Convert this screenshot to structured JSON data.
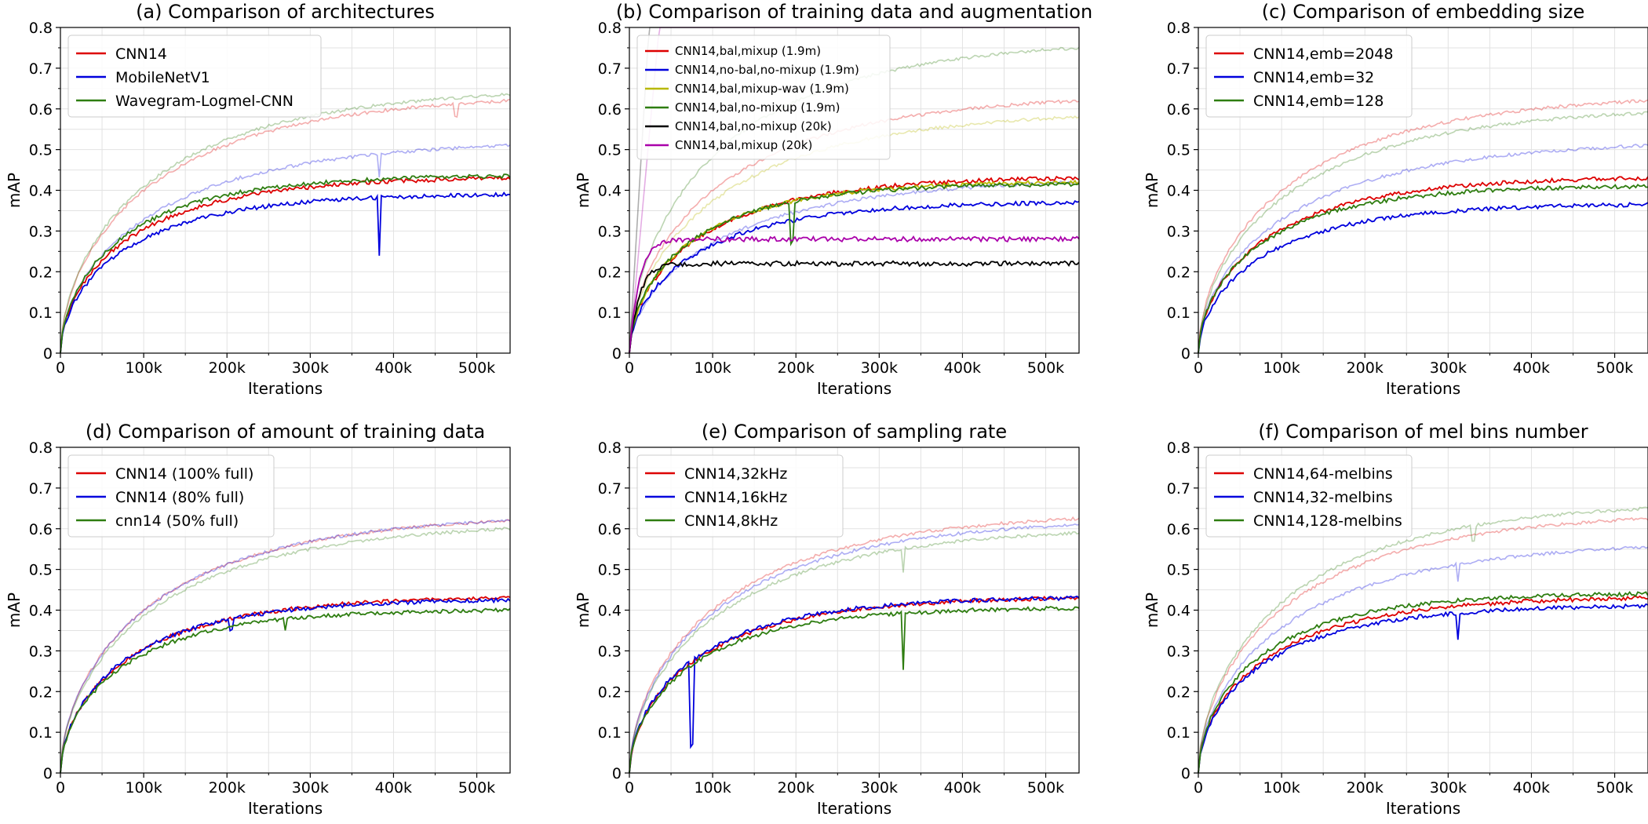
{
  "chart_data": [
    {
      "type": "line",
      "title": "(a) Comparison of architectures",
      "xlabel": "Iterations",
      "ylabel": "mAP",
      "xlim": [
        0,
        540000
      ],
      "ylim": [
        0,
        0.8
      ],
      "xticks": [
        "0",
        "100k",
        "200k",
        "300k",
        "400k",
        "500k"
      ],
      "yticks": [
        "0",
        "0.1",
        "0.2",
        "0.3",
        "0.4",
        "0.5",
        "0.6",
        "0.7",
        "0.8"
      ],
      "legend_position": "top-left",
      "series": [
        {
          "name": "CNN14",
          "color": "#dd0000",
          "test_final": 0.43,
          "train_final": 0.62,
          "spikes": [
            {
              "x": 475000,
              "depth": 0.03,
              "on": "train"
            }
          ]
        },
        {
          "name": "MobileNetV1",
          "color": "#0000dd",
          "test_final": 0.39,
          "train_final": 0.51,
          "spikes": [
            {
              "x": 382000,
              "depth": 0.14,
              "on": "test"
            },
            {
              "x": 382000,
              "depth": 0.06,
              "on": "train"
            }
          ]
        },
        {
          "name": "Wavegram-Logmel-CNN",
          "color": "#2e7d10",
          "test_final": 0.435,
          "train_final": 0.635,
          "spikes": []
        }
      ]
    },
    {
      "type": "line",
      "title": "(b) Comparison of training data and augmentation",
      "xlabel": "Iterations",
      "ylabel": "mAP",
      "xlim": [
        0,
        540000
      ],
      "ylim": [
        0,
        0.8
      ],
      "xticks": [
        "0",
        "100k",
        "200k",
        "300k",
        "400k",
        "500k"
      ],
      "yticks": [
        "0",
        "0.1",
        "0.2",
        "0.3",
        "0.4",
        "0.5",
        "0.6",
        "0.7",
        "0.8"
      ],
      "legend_position": "top-left",
      "series": [
        {
          "name": "CNN14,bal,mixup (1.9m)",
          "color": "#dd0000",
          "test_final": 0.43,
          "train_final": 0.62,
          "spikes": []
        },
        {
          "name": "CNN14,no-bal,no-mixup (1.9m)",
          "color": "#0000dd",
          "test_final": 0.37,
          "train_final": 0.42,
          "spikes": []
        },
        {
          "name": "CNN14,bal,mixup-wav (1.9m)",
          "color": "#b8b800",
          "test_final": 0.42,
          "train_final": 0.58,
          "spikes": []
        },
        {
          "name": "CNN14,bal,no-mixup (1.9m)",
          "color": "#2e7d10",
          "test_final": 0.415,
          "train_final": 0.75,
          "spikes": [
            {
              "x": 195000,
              "depth": 0.1,
              "on": "test"
            }
          ]
        },
        {
          "name": "CNN14,bal,no-mixup (20k)",
          "color": "#000000",
          "test_final": 0.22,
          "train_final": 0.8,
          "spikes": []
        },
        {
          "name": "CNN14,bal,mixup (20k)",
          "color": "#aa00aa",
          "test_final": 0.28,
          "train_final": 0.8,
          "spikes": []
        }
      ]
    },
    {
      "type": "line",
      "title": "(c) Comparison of embedding size",
      "xlabel": "Iterations",
      "ylabel": "mAP",
      "xlim": [
        0,
        540000
      ],
      "ylim": [
        0,
        0.8
      ],
      "xticks": [
        "0",
        "100k",
        "200k",
        "300k",
        "400k",
        "500k"
      ],
      "yticks": [
        "0",
        "0.1",
        "0.2",
        "0.3",
        "0.4",
        "0.5",
        "0.6",
        "0.7",
        "0.8"
      ],
      "legend_position": "top-left",
      "series": [
        {
          "name": "CNN14,emb=2048",
          "color": "#dd0000",
          "test_final": 0.43,
          "train_final": 0.62,
          "spikes": []
        },
        {
          "name": "CNN14,emb=32",
          "color": "#0000dd",
          "test_final": 0.365,
          "train_final": 0.51,
          "spikes": []
        },
        {
          "name": "CNN14,emb=128",
          "color": "#2e7d10",
          "test_final": 0.41,
          "train_final": 0.59,
          "spikes": []
        }
      ]
    },
    {
      "type": "line",
      "title": "(d) Comparison of amount of training data",
      "xlabel": "Iterations",
      "ylabel": "mAP",
      "xlim": [
        0,
        540000
      ],
      "ylim": [
        0,
        0.8
      ],
      "xticks": [
        "0",
        "100k",
        "200k",
        "300k",
        "400k",
        "500k"
      ],
      "yticks": [
        "0",
        "0.1",
        "0.2",
        "0.3",
        "0.4",
        "0.5",
        "0.6",
        "0.7",
        "0.8"
      ],
      "legend_position": "top-left",
      "series": [
        {
          "name": "CNN14 (100% full)",
          "color": "#dd0000",
          "test_final": 0.43,
          "train_final": 0.62,
          "spikes": []
        },
        {
          "name": "CNN14 (80% full)",
          "color": "#0000dd",
          "test_final": 0.425,
          "train_final": 0.62,
          "spikes": [
            {
              "x": 205000,
              "depth": 0.03,
              "on": "test"
            }
          ]
        },
        {
          "name": "cnn14 (50% full)",
          "color": "#2e7d10",
          "test_final": 0.4,
          "train_final": 0.6,
          "spikes": [
            {
              "x": 270000,
              "depth": 0.03,
              "on": "test"
            }
          ]
        }
      ]
    },
    {
      "type": "line",
      "title": "(e) Comparison of sampling rate",
      "xlabel": "Iterations",
      "ylabel": "mAP",
      "xlim": [
        0,
        540000
      ],
      "ylim": [
        0,
        0.8
      ],
      "xticks": [
        "0",
        "100k",
        "200k",
        "300k",
        "400k",
        "500k"
      ],
      "yticks": [
        "0",
        "0.1",
        "0.2",
        "0.3",
        "0.4",
        "0.5",
        "0.6",
        "0.7",
        "0.8"
      ],
      "legend_position": "top-left",
      "series": [
        {
          "name": "CNN14,32kHz",
          "color": "#dd0000",
          "test_final": 0.43,
          "train_final": 0.625,
          "spikes": []
        },
        {
          "name": "CNN14,16kHz",
          "color": "#0000dd",
          "test_final": 0.43,
          "train_final": 0.61,
          "spikes": [
            {
              "x": 75000,
              "depth": 0.21,
              "on": "test"
            }
          ]
        },
        {
          "name": "CNN14,8kHz",
          "color": "#2e7d10",
          "test_final": 0.405,
          "train_final": 0.59,
          "spikes": [
            {
              "x": 328000,
              "depth": 0.14,
              "on": "test"
            },
            {
              "x": 328000,
              "depth": 0.06,
              "on": "train"
            }
          ]
        }
      ]
    },
    {
      "type": "line",
      "title": "(f) Comparison of mel bins number",
      "xlabel": "Iterations",
      "ylabel": "mAP",
      "xlim": [
        0,
        540000
      ],
      "ylim": [
        0,
        0.8
      ],
      "xticks": [
        "0",
        "100k",
        "200k",
        "300k",
        "400k",
        "500k"
      ],
      "yticks": [
        "0",
        "0.1",
        "0.2",
        "0.3",
        "0.4",
        "0.5",
        "0.6",
        "0.7",
        "0.8"
      ],
      "legend_position": "top-left",
      "series": [
        {
          "name": "CNN14,64-melbins",
          "color": "#dd0000",
          "test_final": 0.43,
          "train_final": 0.625,
          "spikes": []
        },
        {
          "name": "CNN14,32-melbins",
          "color": "#0000dd",
          "test_final": 0.41,
          "train_final": 0.555,
          "spikes": [
            {
              "x": 312000,
              "depth": 0.07,
              "on": "test"
            },
            {
              "x": 312000,
              "depth": 0.04,
              "on": "train"
            }
          ]
        },
        {
          "name": "CNN14,128-melbins",
          "color": "#2e7d10",
          "test_final": 0.44,
          "train_final": 0.65,
          "spikes": [
            {
              "x": 330000,
              "depth": 0.04,
              "on": "train"
            }
          ]
        }
      ]
    }
  ]
}
